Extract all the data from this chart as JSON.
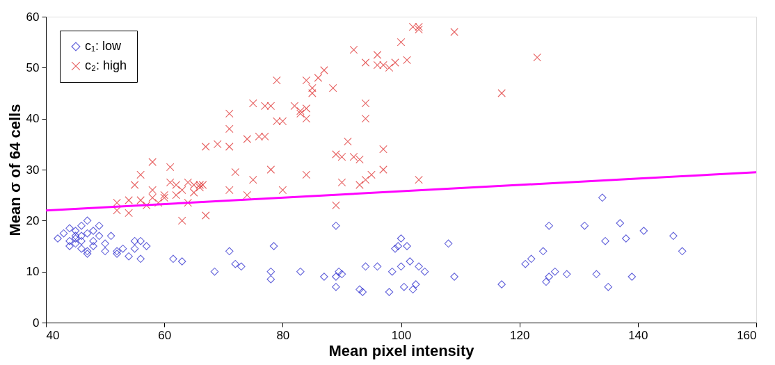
{
  "chart_data": {
    "type": "scatter",
    "xlabel": "Mean pixel intensity",
    "ylabel": "Mean σ of 64 cells",
    "xlim": [
      40,
      160
    ],
    "ylim": [
      0,
      60
    ],
    "xticks": [
      40,
      60,
      80,
      100,
      120,
      140,
      160
    ],
    "yticks": [
      0,
      10,
      20,
      30,
      40,
      50,
      60
    ],
    "grid": false,
    "legend": "top left",
    "series": [
      {
        "name": "c₁: low",
        "color": "#2222cc",
        "marker": "diamond",
        "x": [
          42,
          43,
          44,
          44,
          44,
          45,
          45,
          45,
          45,
          46,
          46,
          46,
          46,
          47,
          47,
          47,
          47,
          48,
          48,
          48,
          49,
          49,
          50,
          50,
          51,
          52,
          52,
          53,
          54,
          55,
          55,
          56,
          56,
          57,
          61.5,
          63,
          68.5,
          71,
          72,
          73,
          78,
          78,
          78.5,
          83,
          87,
          89,
          89,
          89,
          89.5,
          90,
          93,
          93.5,
          94,
          96,
          98,
          98.5,
          99,
          99.5,
          100,
          100,
          100.5,
          101,
          101.5,
          102,
          102.5,
          103,
          104,
          108,
          109,
          117,
          121,
          122,
          124,
          124.5,
          125,
          125,
          126,
          128,
          131,
          133,
          134,
          134.5,
          135,
          137,
          138,
          139,
          141,
          146,
          147.5
        ],
        "values": [
          16.5,
          17.5,
          18.5,
          16,
          15,
          17,
          16.5,
          15.5,
          18,
          17,
          16,
          19,
          14.5,
          17.5,
          20,
          14,
          13.5,
          18,
          16,
          15,
          19,
          17,
          15.5,
          14,
          17,
          14,
          13.5,
          14.5,
          13,
          16,
          14.5,
          12.5,
          16,
          15,
          12.5,
          12,
          10,
          14,
          11.5,
          11,
          10,
          8.5,
          15,
          10,
          9,
          19,
          9,
          7,
          10,
          9.5,
          6.5,
          6,
          11,
          11,
          6,
          10,
          14.5,
          15,
          16.5,
          11,
          7,
          15,
          12,
          6.5,
          7.5,
          11,
          10,
          15.5,
          9,
          7.5,
          11.5,
          12.5,
          14,
          8,
          19,
          9,
          10,
          9.5,
          19,
          9.5,
          24.5,
          16,
          7,
          19.5,
          16.5,
          9,
          18,
          17,
          14
        ]
      },
      {
        "name": "c₂: high",
        "color": "#dd2222",
        "marker": "cross",
        "x": [
          52,
          52,
          54,
          54,
          55,
          56,
          56,
          57,
          58,
          58,
          58,
          59,
          60,
          60,
          61,
          61,
          62,
          62,
          63,
          63,
          64,
          64,
          65,
          65,
          66,
          66,
          66.5,
          67,
          67,
          69,
          71,
          71,
          71,
          71,
          72,
          74,
          74,
          75,
          75,
          76,
          77,
          77,
          78,
          78,
          79,
          79,
          80,
          80,
          82,
          83,
          83,
          84,
          84,
          84,
          84,
          85,
          85,
          86,
          87,
          88.5,
          89,
          89,
          90,
          90,
          91,
          92,
          92,
          93,
          93,
          94,
          94,
          94,
          94,
          95,
          96,
          96,
          97,
          97,
          97,
          98,
          99,
          100,
          101,
          102,
          103,
          103,
          103,
          109,
          117,
          123
        ],
        "values": [
          23.5,
          22,
          24,
          21.5,
          27,
          29,
          24,
          23,
          31.5,
          26,
          24.5,
          23.5,
          25,
          24.5,
          30.5,
          27.5,
          27,
          25,
          20,
          26,
          23.5,
          27.5,
          27,
          25.5,
          27,
          26.5,
          27,
          21,
          34.5,
          35,
          41,
          38,
          34.5,
          26,
          29.5,
          25,
          36,
          28,
          43,
          36.5,
          36.5,
          42.5,
          30,
          42.5,
          39.5,
          47.5,
          26,
          39.5,
          42.5,
          41,
          41.5,
          40,
          42,
          29,
          47.5,
          45,
          46,
          48,
          49.5,
          46,
          33,
          23,
          27.5,
          32.5,
          35.5,
          53.5,
          32.5,
          32,
          27,
          40,
          43,
          51,
          28,
          29,
          52.5,
          50.5,
          50.5,
          34,
          30,
          50,
          51,
          55,
          51.5,
          58,
          58,
          57.5,
          28,
          57,
          45,
          52
        ]
      },
      {
        "type": "line",
        "color": "#ff00ff",
        "x": [
          40,
          160
        ],
        "values": [
          22,
          29.5
        ]
      }
    ]
  }
}
